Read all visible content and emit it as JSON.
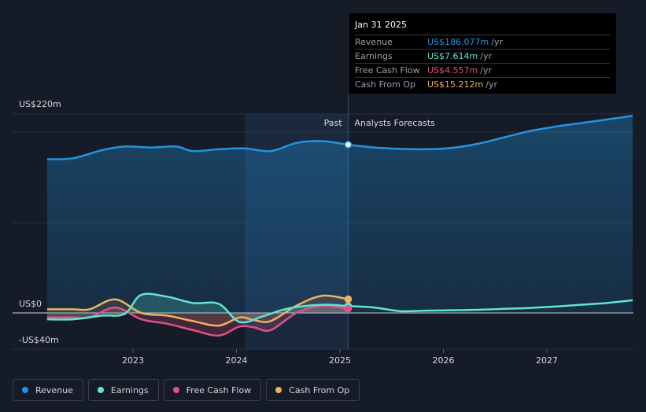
{
  "tooltip": {
    "date": "Jan 31 2025",
    "rows": [
      {
        "label": "Revenue",
        "value": "US$186.077m",
        "unit": "/yr",
        "color": "#2394df"
      },
      {
        "label": "Earnings",
        "value": "US$7.614m",
        "unit": "/yr",
        "color": "#5ee6d0"
      },
      {
        "label": "Free Cash Flow",
        "value": "US$4.557m",
        "unit": "/yr",
        "color": "#e0508a"
      },
      {
        "label": "Cash From Op",
        "value": "US$15.212m",
        "unit": "/yr",
        "color": "#f0b060"
      }
    ]
  },
  "labels": {
    "past": "Past",
    "forecast": "Analysts Forecasts",
    "y_top": "US$220m",
    "y_zero": "US$0",
    "y_bottom": "-US$40m"
  },
  "legend": [
    {
      "label": "Revenue",
      "color": "#2394df"
    },
    {
      "label": "Earnings",
      "color": "#5ee6d0"
    },
    {
      "label": "Free Cash Flow",
      "color": "#e0508a"
    },
    {
      "label": "Cash From Op",
      "color": "#f0b060"
    }
  ],
  "chart_data": {
    "type": "line",
    "x_ticks": [
      "2023",
      "2024",
      "2025",
      "2026",
      "2027"
    ],
    "ylim": [
      -40,
      220
    ],
    "past_end": 2025.08,
    "highlight_start": 2024.08,
    "series": [
      {
        "name": "Revenue",
        "color": "#2394df",
        "points": [
          [
            2022.17,
            170
          ],
          [
            2022.42,
            171
          ],
          [
            2022.7,
            180
          ],
          [
            2022.92,
            184
          ],
          [
            2023.17,
            183
          ],
          [
            2023.42,
            184
          ],
          [
            2023.58,
            179
          ],
          [
            2023.83,
            181
          ],
          [
            2024.08,
            182
          ],
          [
            2024.33,
            179
          ],
          [
            2024.58,
            188
          ],
          [
            2024.83,
            190
          ],
          [
            2025.08,
            186.1
          ],
          [
            2025.33,
            183
          ],
          [
            2025.58,
            181.5
          ],
          [
            2025.83,
            181
          ],
          [
            2026.08,
            182.5
          ],
          [
            2026.33,
            187
          ],
          [
            2026.58,
            194
          ],
          [
            2026.83,
            201
          ],
          [
            2027.08,
            206
          ],
          [
            2027.33,
            210
          ],
          [
            2027.58,
            214
          ],
          [
            2027.83,
            218
          ]
        ]
      },
      {
        "name": "Earnings",
        "color": "#5ee6d0",
        "points": [
          [
            2022.17,
            -7
          ],
          [
            2022.42,
            -7
          ],
          [
            2022.7,
            -3
          ],
          [
            2022.92,
            -1
          ],
          [
            2023.08,
            20
          ],
          [
            2023.33,
            18
          ],
          [
            2023.58,
            11
          ],
          [
            2023.83,
            10
          ],
          [
            2024.03,
            -10
          ],
          [
            2024.25,
            -4
          ],
          [
            2024.5,
            5
          ],
          [
            2024.83,
            9
          ],
          [
            2025.08,
            7.6
          ],
          [
            2025.33,
            6
          ],
          [
            2025.58,
            2
          ],
          [
            2025.83,
            2.5
          ],
          [
            2026.08,
            3
          ],
          [
            2026.33,
            3.5
          ],
          [
            2026.58,
            4.5
          ],
          [
            2026.83,
            5.5
          ],
          [
            2027.08,
            7
          ],
          [
            2027.33,
            9
          ],
          [
            2027.58,
            11
          ],
          [
            2027.83,
            14
          ]
        ]
      },
      {
        "name": "Free Cash Flow",
        "color": "#e0508a",
        "points": [
          [
            2022.17,
            -5
          ],
          [
            2022.42,
            -5
          ],
          [
            2022.58,
            -5
          ],
          [
            2022.83,
            6
          ],
          [
            2023.08,
            -7
          ],
          [
            2023.33,
            -12
          ],
          [
            2023.58,
            -19
          ],
          [
            2023.83,
            -25
          ],
          [
            2024.03,
            -15
          ],
          [
            2024.17,
            -16
          ],
          [
            2024.33,
            -19
          ],
          [
            2024.58,
            0
          ],
          [
            2024.83,
            8
          ],
          [
            2025.08,
            4.6
          ]
        ]
      },
      {
        "name": "Cash From Op",
        "color": "#f0b060",
        "points": [
          [
            2022.17,
            4
          ],
          [
            2022.42,
            4
          ],
          [
            2022.58,
            4
          ],
          [
            2022.83,
            15
          ],
          [
            2023.08,
            0
          ],
          [
            2023.33,
            -3
          ],
          [
            2023.58,
            -9
          ],
          [
            2023.83,
            -14
          ],
          [
            2024.03,
            -5
          ],
          [
            2024.17,
            -8
          ],
          [
            2024.33,
            -9
          ],
          [
            2024.58,
            8
          ],
          [
            2024.83,
            19
          ],
          [
            2025.08,
            15.2
          ]
        ]
      }
    ]
  }
}
